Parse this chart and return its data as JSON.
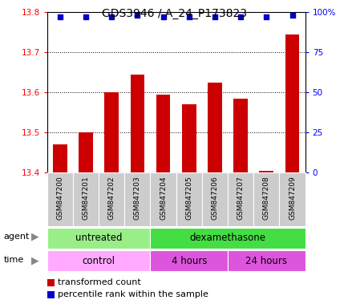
{
  "title": "GDS3946 / A_24_P173823",
  "samples": [
    "GSM847200",
    "GSM847201",
    "GSM847202",
    "GSM847203",
    "GSM847204",
    "GSM847205",
    "GSM847206",
    "GSM847207",
    "GSM847208",
    "GSM847209"
  ],
  "transformed_counts": [
    13.47,
    13.5,
    13.6,
    13.645,
    13.595,
    13.57,
    13.625,
    13.585,
    13.405,
    13.745
  ],
  "percentile_ranks": [
    97,
    97,
    97,
    98,
    97,
    97,
    97,
    97,
    97,
    98
  ],
  "ylim_left": [
    13.4,
    13.8
  ],
  "ylim_right": [
    0,
    100
  ],
  "yticks_left": [
    13.4,
    13.5,
    13.6,
    13.7,
    13.8
  ],
  "yticks_right": [
    0,
    25,
    50,
    75,
    100
  ],
  "bar_color": "#cc0000",
  "dot_color": "#0000cc",
  "agent_groups": [
    {
      "label": "untreated",
      "start": 0,
      "end": 4,
      "color": "#99ee88"
    },
    {
      "label": "dexamethasone",
      "start": 4,
      "end": 10,
      "color": "#44dd44"
    }
  ],
  "time_groups": [
    {
      "label": "control",
      "start": 0,
      "end": 4,
      "color": "#ffaaff"
    },
    {
      "label": "4 hours",
      "start": 4,
      "end": 7,
      "color": "#dd55dd"
    },
    {
      "label": "24 hours",
      "start": 7,
      "end": 10,
      "color": "#dd55dd"
    }
  ],
  "title_fontsize": 10,
  "tick_fontsize": 7.5,
  "sample_fontsize": 6.5,
  "row_fontsize": 8.5,
  "legend_fontsize": 8
}
